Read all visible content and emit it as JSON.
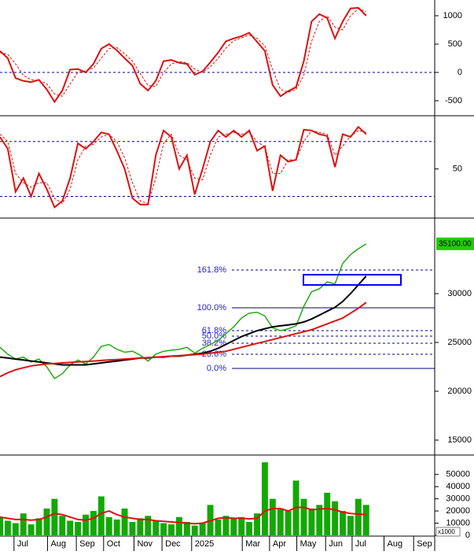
{
  "chart_data": [
    {
      "type": "oscillator",
      "xlim": [
        0,
        55.5
      ],
      "ylim": [
        -736,
        1278
      ],
      "yticks": [
        -500,
        0,
        500,
        1000
      ],
      "reference": [
        0
      ],
      "x": [
        0,
        1,
        2,
        3,
        4,
        5,
        6,
        7,
        8,
        9,
        10,
        11,
        12,
        13,
        14,
        15,
        16,
        17,
        18,
        19,
        20,
        21,
        22,
        23,
        24,
        25,
        26,
        27,
        28,
        29,
        30,
        31,
        32,
        33,
        34,
        35,
        36,
        37,
        38,
        39,
        40,
        41,
        42,
        43,
        44,
        45,
        46,
        47
      ],
      "series": [
        {
          "color": "#dd1111",
          "dash": false,
          "values": [
            380,
            250,
            -100,
            -150,
            -170,
            -130,
            -300,
            -520,
            -320,
            50,
            60,
            0,
            150,
            420,
            500,
            390,
            250,
            120,
            -200,
            -320,
            -150,
            200,
            220,
            170,
            150,
            -40,
            20,
            180,
            350,
            550,
            600,
            640,
            700,
            540,
            380,
            -220,
            -420,
            -330,
            -260,
            200,
            900,
            1030,
            960,
            600,
            900,
            1130,
            1140,
            1000
          ]
        },
        {
          "color": "#dd1111",
          "dash": true,
          "values": [
            350,
            320,
            150,
            -50,
            -130,
            -140,
            -200,
            -380,
            -420,
            -200,
            0,
            30,
            80,
            250,
            420,
            440,
            330,
            200,
            -20,
            -230,
            -250,
            0,
            150,
            190,
            170,
            60,
            0,
            100,
            250,
            430,
            560,
            610,
            660,
            600,
            470,
            50,
            -300,
            -350,
            -300,
            -50,
            550,
            900,
            1000,
            800,
            750,
            1000,
            1120,
            1080
          ]
        }
      ]
    },
    {
      "type": "oscillator",
      "xlim": [
        0,
        55.5
      ],
      "ylim": [
        -2,
        106.5
      ],
      "yticks": [
        50
      ],
      "reference": [
        80,
        20
      ],
      "x": [
        0,
        1,
        2,
        3,
        4,
        5,
        6,
        7,
        8,
        9,
        10,
        11,
        12,
        13,
        14,
        15,
        16,
        17,
        18,
        19,
        20,
        21,
        22,
        23,
        24,
        25,
        26,
        27,
        28,
        29,
        30,
        31,
        32,
        33,
        34,
        35,
        36,
        37,
        38,
        39,
        40,
        41,
        42,
        43,
        44,
        45,
        46,
        47
      ],
      "series": [
        {
          "color": "#dd1111",
          "dash": false,
          "values": [
            85,
            72,
            25,
            40,
            20,
            45,
            28,
            8,
            15,
            40,
            78,
            72,
            80,
            90,
            88,
            70,
            50,
            18,
            11,
            11,
            65,
            92,
            85,
            50,
            65,
            22,
            50,
            80,
            92,
            85,
            92,
            85,
            92,
            70,
            75,
            26,
            65,
            58,
            60,
            93,
            92,
            88,
            86,
            52,
            88,
            85,
            96,
            88
          ]
        },
        {
          "color": "#dd1111",
          "dash": true,
          "values": [
            88,
            80,
            45,
            35,
            30,
            35,
            35,
            18,
            12,
            28,
            60,
            75,
            77,
            85,
            88,
            80,
            62,
            35,
            15,
            12,
            40,
            78,
            88,
            65,
            60,
            40,
            38,
            65,
            85,
            88,
            90,
            88,
            90,
            80,
            74,
            45,
            45,
            60,
            60,
            80,
            92,
            90,
            88,
            65,
            75,
            86,
            92,
            90
          ]
        }
      ]
    },
    {
      "type": "price",
      "xlim": [
        0,
        55.5
      ],
      "ylim": [
        13550,
        37580
      ],
      "yticks": [
        15000,
        20000,
        25000,
        30000
      ],
      "price_tag": {
        "value": 35100,
        "label": "35100.00"
      },
      "zone": [
        30890,
        31940
      ],
      "fib_levels": [
        {
          "value": 32420,
          "label": "161.8%",
          "dash": true
        },
        {
          "value": 28550,
          "label": "100.0%",
          "dash": false
        },
        {
          "value": 26210,
          "label": "61.8%",
          "dash": true
        },
        {
          "value": 25650,
          "label": "50.0%",
          "dash": true
        },
        {
          "value": 24920,
          "label": "38.2%",
          "dash": true
        },
        {
          "value": 23790,
          "label": "23.6%",
          "dash": true
        },
        {
          "value": 22340,
          "label": "0.0%",
          "dash": false
        }
      ],
      "x": [
        0,
        1,
        2,
        3,
        4,
        5,
        6,
        7,
        8,
        9,
        10,
        11,
        12,
        13,
        14,
        15,
        16,
        17,
        18,
        19,
        20,
        21,
        22,
        23,
        24,
        25,
        26,
        27,
        28,
        29,
        30,
        31,
        32,
        33,
        34,
        35,
        36,
        37,
        38,
        39,
        40,
        41,
        42,
        43,
        44,
        45,
        46,
        47
      ],
      "series": [
        {
          "color": "#22aa11",
          "width": 1.5,
          "values": [
            24500,
            23800,
            23300,
            23500,
            23000,
            23300,
            22500,
            21300,
            21800,
            22700,
            23200,
            22800,
            23500,
            24600,
            24800,
            24300,
            24000,
            24100,
            23700,
            23100,
            23800,
            24100,
            24200,
            24300,
            24500,
            23900,
            24400,
            24800,
            25200,
            25900,
            26600,
            27500,
            28000,
            28100,
            27700,
            26500,
            26200,
            26400,
            26700,
            28700,
            30200,
            30500,
            31200,
            31000,
            33100,
            34000,
            34600,
            35100
          ]
        },
        {
          "color": "#000000",
          "width": 2,
          "values": [
            23500,
            23400,
            23300,
            23200,
            23100,
            23000,
            22900,
            22800,
            22700,
            22700,
            22700,
            22700,
            22800,
            22900,
            23000,
            23100,
            23200,
            23300,
            23400,
            23400,
            23500,
            23500,
            23600,
            23600,
            23700,
            23800,
            23900,
            24100,
            24400,
            24800,
            25200,
            25600,
            25900,
            26200,
            26400,
            26600,
            26700,
            26800,
            26900,
            27100,
            27400,
            27800,
            28200,
            28600,
            29200,
            30000,
            30900,
            31800
          ]
        },
        {
          "color": "#dd1111",
          "width": 2,
          "values": [
            21500,
            21900,
            22200,
            22400,
            22600,
            22700,
            22800,
            22850,
            22900,
            22950,
            23000,
            23050,
            23100,
            23150,
            23200,
            23250,
            23300,
            23350,
            23400,
            23450,
            23500,
            23550,
            23600,
            23650,
            23700,
            23750,
            23800,
            23900,
            24000,
            24100,
            24300,
            24500,
            24700,
            24900,
            25100,
            25300,
            25500,
            25700,
            25900,
            26100,
            26300,
            26600,
            26900,
            27200,
            27500,
            28000,
            28500,
            29100
          ]
        }
      ]
    },
    {
      "type": "volume",
      "xlim": [
        0,
        55.5
      ],
      "ylim": [
        0,
        64700
      ],
      "yticks": [
        0,
        10000,
        20000,
        30000,
        40000,
        50000
      ],
      "unit_label": "x1000",
      "xticks": [
        {
          "value": 1.8,
          "label": "Jul"
        },
        {
          "value": 6.1,
          "label": "Aug"
        },
        {
          "value": 9.8,
          "label": "Sep"
        },
        {
          "value": 13.3,
          "label": "Oct"
        },
        {
          "value": 17.2,
          "label": "Nov"
        },
        {
          "value": 20.8,
          "label": "Dec"
        },
        {
          "value": 24.6,
          "label": "2025"
        },
        {
          "value": 31.1,
          "label": "Mar"
        },
        {
          "value": 34.6,
          "label": "Apr"
        },
        {
          "value": 38.1,
          "label": "May"
        },
        {
          "value": 41.8,
          "label": "Jun"
        },
        {
          "value": 45.2,
          "label": "Jul"
        },
        {
          "value": 49.3,
          "label": "Aug"
        },
        {
          "value": 53.1,
          "label": "Sep"
        }
      ],
      "x": [
        0,
        1,
        2,
        3,
        4,
        5,
        6,
        7,
        8,
        9,
        10,
        11,
        12,
        13,
        14,
        15,
        16,
        17,
        18,
        19,
        20,
        21,
        22,
        23,
        24,
        25,
        26,
        27,
        28,
        29,
        30,
        31,
        32,
        33,
        34,
        35,
        36,
        37,
        38,
        39,
        40,
        41,
        42,
        43,
        44,
        45,
        46,
        47
      ],
      "bar_color": "#11aa00",
      "values": [
        15000,
        12000,
        10000,
        18000,
        9000,
        14000,
        22000,
        30000,
        16000,
        12000,
        11000,
        17000,
        20000,
        32000,
        15000,
        13000,
        22000,
        11000,
        14000,
        16000,
        12000,
        10000,
        9000,
        15000,
        11000,
        8000,
        10000,
        25000,
        13000,
        16000,
        14000,
        15000,
        11000,
        18000,
        60000,
        30000,
        22000,
        20000,
        45000,
        30000,
        22000,
        25000,
        35000,
        28000,
        20000,
        16000,
        30000,
        25000
      ],
      "ma": {
        "color": "#dd1111",
        "values": [
          15000,
          14000,
          13000,
          13000,
          12500,
          13000,
          15000,
          18000,
          17000,
          15000,
          13000,
          12500,
          14000,
          18000,
          20000,
          17000,
          15000,
          14000,
          13000,
          13000,
          12000,
          11500,
          11000,
          10500,
          10000,
          9500,
          10000,
          12000,
          14000,
          14500,
          14000,
          14000,
          13500,
          14000,
          20000,
          22000,
          22000,
          20000,
          23000,
          23000,
          21000,
          21500,
          22000,
          21000,
          19000,
          18000,
          17500,
          17000
        ]
      }
    }
  ]
}
